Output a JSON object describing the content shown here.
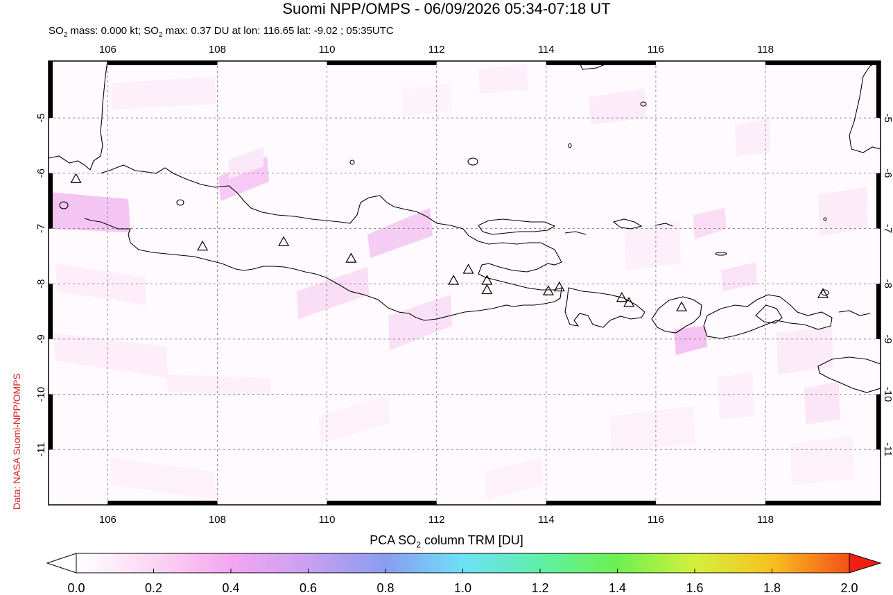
{
  "header": {
    "title": "Suomi NPP/OMPS - 06/09/2026 05:34-07:18 UT",
    "subtitle_parts": [
      "SO",
      "2",
      " mass: 0.000 kt; SO",
      "2",
      " max: 0.37 DU at lon: 116.65 lat: -9.02 ; 05:35UTC"
    ]
  },
  "credit": "Data: NASA Suomi-NPP/OMPS",
  "map": {
    "lon_range": [
      104.92,
      120.1
    ],
    "lat_range": [
      -12.0,
      -3.97
    ],
    "lon_ticks": [
      "106",
      "108",
      "110",
      "112",
      "114",
      "116",
      "118"
    ],
    "lat_ticks": [
      "-5",
      "-6",
      "-7",
      "-8",
      "-9",
      "-10",
      "-11"
    ],
    "grid": true,
    "volcano_marker": "triangle-outline",
    "volcanoes": [
      {
        "lon": 105.42,
        "lat": -6.1
      },
      {
        "lon": 107.73,
        "lat": -7.32
      },
      {
        "lon": 109.21,
        "lat": -7.24
      },
      {
        "lon": 110.44,
        "lat": -7.54
      },
      {
        "lon": 112.31,
        "lat": -7.94
      },
      {
        "lon": 112.58,
        "lat": -7.74
      },
      {
        "lon": 112.92,
        "lat": -7.94
      },
      {
        "lon": 112.92,
        "lat": -8.11
      },
      {
        "lon": 114.04,
        "lat": -8.13
      },
      {
        "lon": 114.24,
        "lat": -8.06
      },
      {
        "lon": 115.38,
        "lat": -8.25
      },
      {
        "lon": 115.51,
        "lat": -8.34
      },
      {
        "lon": 116.47,
        "lat": -8.42
      },
      {
        "lon": 119.05,
        "lat": -8.18
      }
    ]
  },
  "colorbar": {
    "label_parts": [
      "PCA SO",
      "2",
      " column TRM [DU]"
    ],
    "ticks": [
      "0.0",
      "0.2",
      "0.4",
      "0.6",
      "0.8",
      "1.0",
      "1.2",
      "1.4",
      "1.6",
      "1.8",
      "2.0"
    ],
    "range": [
      0.0,
      2.0
    ],
    "colors": [
      "#ffffff",
      "#fbd6f2",
      "#f3a6f0",
      "#c8a0f0",
      "#8a9cf2",
      "#6ee0f6",
      "#5ef0a8",
      "#6ef050",
      "#d4f03c",
      "#f8c020",
      "#f45018",
      "#f02010"
    ]
  }
}
